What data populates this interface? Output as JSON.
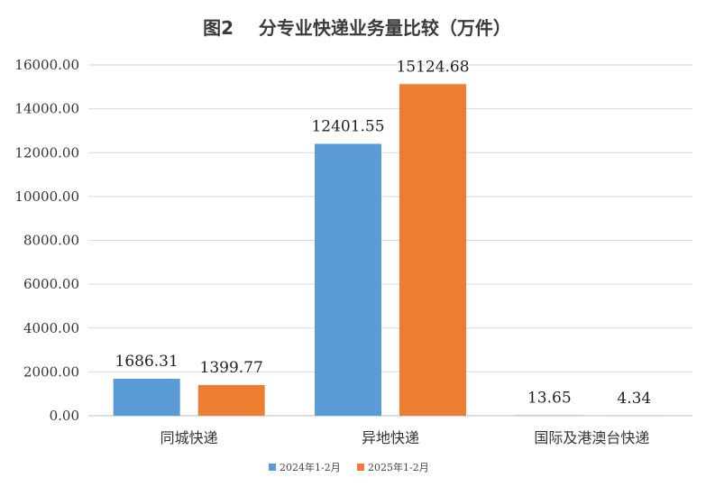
{
  "chart_data": {
    "type": "bar",
    "title": "图2    分专业快递业务量比较（万件）",
    "categories": [
      "同城快递",
      "异地快递",
      "国际及港澳台快递"
    ],
    "series": [
      {
        "name": "2024年1-2月",
        "values": [
          1686.31,
          12401.55,
          13.65
        ],
        "labels": [
          "1686.31",
          "12401.55",
          "13.65"
        ],
        "color": "#5b9bd5"
      },
      {
        "name": "2025年1-2月",
        "values": [
          1399.77,
          15124.68,
          4.34
        ],
        "labels": [
          "1399.77",
          "15124.68",
          "4.34"
        ],
        "color": "#ed7d31"
      }
    ],
    "ylim": [
      0,
      16000
    ],
    "yticks": [
      "0.00",
      "2000.00",
      "4000.00",
      "6000.00",
      "8000.00",
      "10000.00",
      "12000.00",
      "14000.00",
      "16000.00"
    ],
    "grid": true,
    "legend": "bottom"
  }
}
